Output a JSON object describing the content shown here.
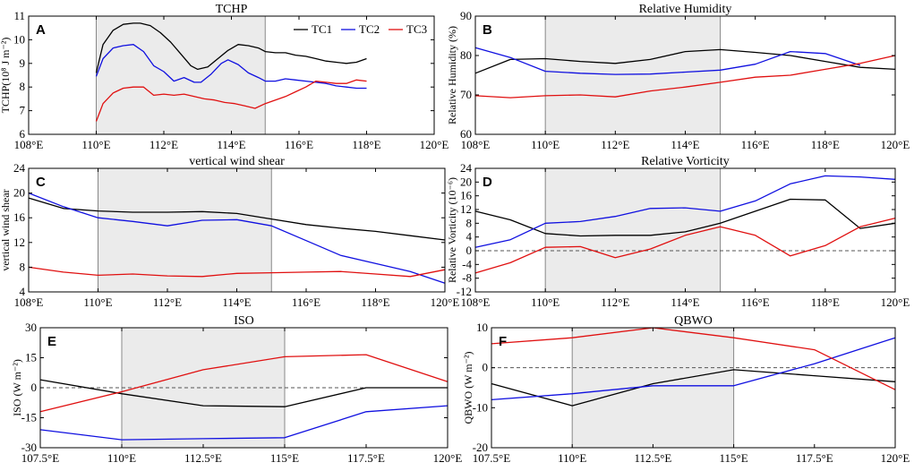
{
  "figure": {
    "legend": [
      {
        "name": "TC1",
        "color": "#000000"
      },
      {
        "name": "TC2",
        "color": "#1010e0"
      },
      {
        "name": "TC3",
        "color": "#e01010"
      }
    ]
  },
  "chart_data": [
    {
      "type": "line",
      "panel": "A",
      "title": "TCHP",
      "ylabel": "TCHP(10⁸ J m⁻²)",
      "xlim": [
        108,
        120
      ],
      "ylim": [
        6,
        11
      ],
      "xticks": [
        108,
        110,
        112,
        114,
        116,
        118,
        120
      ],
      "xticklabels": [
        "108°E",
        "110°E",
        "112°E",
        "114°E",
        "116°E",
        "118°E",
        "120°E"
      ],
      "yticks": [
        6,
        7,
        8,
        9,
        10,
        11
      ],
      "yticklabels": [
        "6",
        "7",
        "8",
        "9",
        "10",
        "11"
      ],
      "shade": [
        110,
        115
      ],
      "zero_line": false,
      "legend": true,
      "series": [
        {
          "name": "TC1",
          "color": "#000000",
          "x": [
            110,
            110.2,
            110.5,
            110.8,
            111.1,
            111.3,
            111.6,
            111.9,
            112.2,
            112.5,
            112.8,
            113.0,
            113.3,
            113.6,
            113.9,
            114.2,
            114.5,
            114.8,
            115.0,
            115.3,
            115.6,
            115.9,
            116.2,
            116.5,
            116.8,
            117.1,
            117.4,
            117.7,
            118.0
          ],
          "y": [
            8.6,
            9.8,
            10.4,
            10.65,
            10.7,
            10.7,
            10.6,
            10.3,
            9.9,
            9.4,
            8.9,
            8.75,
            8.85,
            9.2,
            9.55,
            9.8,
            9.75,
            9.65,
            9.5,
            9.45,
            9.45,
            9.35,
            9.3,
            9.2,
            9.1,
            9.05,
            9.0,
            9.05,
            9.2
          ]
        },
        {
          "name": "TC2",
          "color": "#1010e0",
          "x": [
            110,
            110.2,
            110.5,
            110.8,
            111.1,
            111.4,
            111.7,
            112.0,
            112.3,
            112.6,
            112.9,
            113.1,
            113.4,
            113.7,
            113.9,
            114.2,
            114.5,
            114.8,
            115.0,
            115.3,
            115.6,
            115.9,
            116.2,
            116.5,
            116.8,
            117.1,
            117.4,
            117.7,
            118.0
          ],
          "y": [
            8.45,
            9.2,
            9.65,
            9.75,
            9.8,
            9.5,
            8.9,
            8.65,
            8.25,
            8.4,
            8.2,
            8.2,
            8.55,
            9.0,
            9.15,
            8.95,
            8.6,
            8.4,
            8.25,
            8.25,
            8.35,
            8.3,
            8.25,
            8.2,
            8.15,
            8.05,
            8.0,
            7.95,
            7.95
          ]
        },
        {
          "name": "TC3",
          "color": "#e01010",
          "x": [
            110,
            110.2,
            110.5,
            110.8,
            111.1,
            111.4,
            111.7,
            112.0,
            112.3,
            112.6,
            112.9,
            113.2,
            113.5,
            113.8,
            114.1,
            114.4,
            114.7,
            115.0,
            115.3,
            115.6,
            115.9,
            116.2,
            116.5,
            116.8,
            117.1,
            117.4,
            117.7,
            118.0
          ],
          "y": [
            6.55,
            7.3,
            7.75,
            7.95,
            8.0,
            8.0,
            7.65,
            7.7,
            7.65,
            7.7,
            7.6,
            7.5,
            7.45,
            7.35,
            7.3,
            7.2,
            7.1,
            7.3,
            7.45,
            7.6,
            7.8,
            8.0,
            8.25,
            8.2,
            8.15,
            8.15,
            8.3,
            8.25
          ]
        }
      ]
    },
    {
      "type": "line",
      "panel": "B",
      "title": "Relative Humidity",
      "ylabel": "Relative Humidity (%)",
      "xlim": [
        108,
        120
      ],
      "ylim": [
        60,
        90
      ],
      "xticks": [
        108,
        110,
        112,
        114,
        116,
        118,
        120
      ],
      "xticklabels": [
        "108°E",
        "110°E",
        "112°E",
        "114°E",
        "116°E",
        "118°E",
        "120°E"
      ],
      "yticks": [
        60,
        70,
        80,
        90
      ],
      "yticklabels": [
        "60",
        "70",
        "80",
        "90"
      ],
      "shade": [
        110,
        115
      ],
      "zero_line": false,
      "legend": false,
      "series": [
        {
          "name": "TC1",
          "color": "#000000",
          "x": [
            108,
            109,
            110,
            111,
            112,
            113,
            114,
            115,
            116,
            117,
            118,
            119,
            120
          ],
          "y": [
            75.5,
            79,
            79.2,
            78.5,
            78,
            79,
            81,
            81.5,
            80.8,
            80,
            78.5,
            77,
            76.5
          ]
        },
        {
          "name": "TC2",
          "color": "#1010e0",
          "x": [
            108,
            109,
            110,
            111,
            112,
            113,
            114,
            115,
            116,
            117,
            118,
            119
          ],
          "y": [
            82,
            79.5,
            76,
            75.5,
            75.2,
            75.3,
            75.8,
            76.3,
            77.8,
            81,
            80.5,
            77.5
          ]
        },
        {
          "name": "TC3",
          "color": "#e01010",
          "x": [
            108,
            109,
            110,
            111,
            112,
            113,
            114,
            115,
            116,
            117,
            118,
            119,
            120
          ],
          "y": [
            69.8,
            69.3,
            69.8,
            70,
            69.5,
            71,
            72,
            73.2,
            74.5,
            75,
            76.5,
            78,
            80
          ]
        }
      ]
    },
    {
      "type": "line",
      "panel": "C",
      "title": "vertical wind shear",
      "ylabel": "vertical wind shear",
      "xlim": [
        108,
        120
      ],
      "ylim": [
        4,
        24
      ],
      "xticks": [
        108,
        110,
        112,
        114,
        116,
        118,
        120
      ],
      "xticklabels": [
        "108°E",
        "110°E",
        "112°E",
        "114°E",
        "116°E",
        "118°E",
        "120°E"
      ],
      "yticks": [
        4,
        8,
        12,
        16,
        20,
        24
      ],
      "yticklabels": [
        "4",
        "8",
        "12",
        "16",
        "20",
        "24"
      ],
      "shade": [
        110,
        115
      ],
      "zero_line": false,
      "legend": false,
      "series": [
        {
          "name": "TC1",
          "color": "#000000",
          "x": [
            108,
            109,
            110,
            111,
            112,
            113,
            114,
            115,
            116,
            117,
            118,
            119,
            120
          ],
          "y": [
            19.2,
            17.5,
            17.1,
            16.9,
            16.9,
            17.0,
            16.7,
            15.8,
            14.9,
            14.3,
            13.8,
            13.1,
            12.4
          ]
        },
        {
          "name": "TC2",
          "color": "#1010e0",
          "x": [
            108,
            109,
            110,
            111,
            112,
            113,
            114,
            115,
            116,
            117,
            118,
            119,
            120
          ],
          "y": [
            20,
            17.8,
            16,
            15.4,
            14.7,
            15.6,
            15.7,
            14.7,
            12.3,
            9.9,
            8.6,
            7.3,
            5.4
          ]
        },
        {
          "name": "TC3",
          "color": "#e01010",
          "x": [
            108,
            109,
            110,
            111,
            112,
            113,
            114,
            115,
            116,
            117,
            118,
            119,
            120
          ],
          "y": [
            8,
            7.2,
            6.7,
            6.9,
            6.6,
            6.5,
            7,
            7.1,
            7.2,
            7.3,
            6.9,
            6.5,
            7.6
          ]
        }
      ]
    },
    {
      "type": "line",
      "panel": "D",
      "title": "Relative Vorticity",
      "ylabel": "Relative Vorticity (10⁻⁶)",
      "xlim": [
        108,
        120
      ],
      "ylim": [
        -12,
        24
      ],
      "xticks": [
        108,
        110,
        112,
        114,
        116,
        118,
        120
      ],
      "xticklabels": [
        "108°E",
        "110°E",
        "112°E",
        "114°E",
        "116°E",
        "118°E",
        "120°E"
      ],
      "yticks": [
        -12,
        -8,
        -4,
        0,
        4,
        8,
        12,
        16,
        20,
        24
      ],
      "yticklabels": [
        "-12",
        "-8",
        "-4",
        "0",
        "4",
        "8",
        "12",
        "16",
        "20",
        "24"
      ],
      "shade": [
        110,
        115
      ],
      "zero_line": true,
      "legend": false,
      "series": [
        {
          "name": "TC1",
          "color": "#000000",
          "x": [
            108,
            109,
            110,
            111,
            112,
            113,
            114,
            115,
            116,
            117,
            118,
            119,
            120
          ],
          "y": [
            11.5,
            9,
            5,
            4.3,
            4.5,
            4.5,
            5.5,
            8,
            11.5,
            15,
            14.8,
            6.5,
            8
          ]
        },
        {
          "name": "TC2",
          "color": "#1010e0",
          "x": [
            108,
            109,
            110,
            111,
            112,
            113,
            114,
            115,
            116,
            117,
            118,
            119,
            120
          ],
          "y": [
            1,
            3.2,
            8,
            8.5,
            10,
            12.3,
            12.5,
            11.5,
            14.5,
            19.5,
            21.8,
            21.5,
            20.8
          ]
        },
        {
          "name": "TC3",
          "color": "#e01010",
          "x": [
            108,
            109,
            110,
            111,
            112,
            113,
            114,
            115,
            116,
            117,
            118,
            119,
            120
          ],
          "y": [
            -6.5,
            -3.5,
            1,
            1.2,
            -2,
            0.5,
            4.5,
            7,
            4.5,
            -1.5,
            1.5,
            7,
            9.5
          ]
        }
      ]
    },
    {
      "type": "line",
      "panel": "E",
      "title": "ISO",
      "ylabel": "ISO (W m⁻²)",
      "xlim": [
        107.5,
        120
      ],
      "ylim": [
        -30,
        30
      ],
      "xticks": [
        107.5,
        110,
        112.5,
        115,
        117.5,
        120
      ],
      "xticklabels": [
        "107.5°E",
        "110°E",
        "112.5°E",
        "115°E",
        "117.5°E",
        "120°E"
      ],
      "yticks": [
        -30,
        -15,
        0,
        15,
        30
      ],
      "yticklabels": [
        "-30",
        "-15",
        "0",
        "15",
        "30"
      ],
      "shade": [
        110,
        115
      ],
      "zero_line": true,
      "legend": false,
      "series": [
        {
          "name": "TC1",
          "color": "#000000",
          "x": [
            107.5,
            110,
            112.5,
            115,
            117.5,
            120
          ],
          "y": [
            4,
            -3,
            -9,
            -9.5,
            0,
            0
          ]
        },
        {
          "name": "TC2",
          "color": "#1010e0",
          "x": [
            107.5,
            110,
            112.5,
            115,
            117.5,
            120
          ],
          "y": [
            -21,
            -26,
            -25.5,
            -25,
            -12,
            -9
          ]
        },
        {
          "name": "TC3",
          "color": "#e01010",
          "x": [
            107.5,
            110,
            112.5,
            115,
            117.5,
            120
          ],
          "y": [
            -12,
            -2,
            9,
            15.5,
            16.5,
            3
          ]
        }
      ]
    },
    {
      "type": "line",
      "panel": "F",
      "title": "QBWO",
      "ylabel": "QBWO (W m⁻²)",
      "xlim": [
        107.5,
        120
      ],
      "ylim": [
        -20,
        10
      ],
      "xticks": [
        107.5,
        110,
        112.5,
        115,
        117.5,
        120
      ],
      "xticklabels": [
        "107.5°E",
        "110°E",
        "112.5°E",
        "115°E",
        "117.5°E",
        "120°E"
      ],
      "yticks": [
        -20,
        -10,
        0,
        10
      ],
      "yticklabels": [
        "-20",
        "-10",
        "0",
        "10"
      ],
      "shade": [
        110,
        115
      ],
      "zero_line": true,
      "legend": false,
      "series": [
        {
          "name": "TC1",
          "color": "#000000",
          "x": [
            107.5,
            110,
            112.5,
            115,
            117.5,
            120
          ],
          "y": [
            -4,
            -9.5,
            -4,
            -0.5,
            -2,
            -3.5
          ]
        },
        {
          "name": "TC2",
          "color": "#1010e0",
          "x": [
            107.5,
            110,
            112.5,
            115,
            117.5,
            120
          ],
          "y": [
            -8,
            -6.5,
            -4.5,
            -4.5,
            1,
            7.5
          ]
        },
        {
          "name": "TC3",
          "color": "#e01010",
          "x": [
            107.5,
            110,
            112.5,
            115,
            117.5,
            120
          ],
          "y": [
            6,
            7.5,
            10,
            7.5,
            4.5,
            -5.5
          ]
        }
      ]
    }
  ]
}
